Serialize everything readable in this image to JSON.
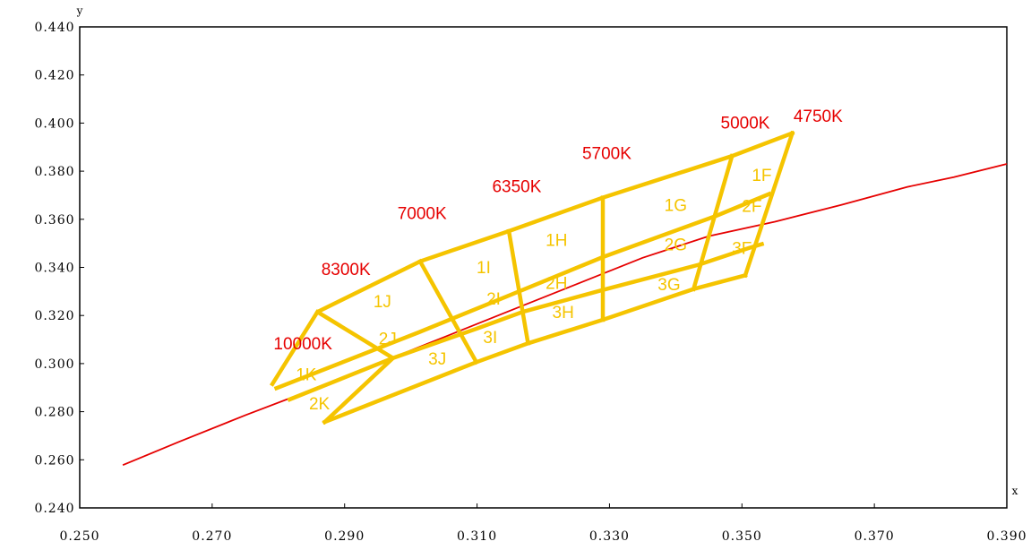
{
  "chart_data": {
    "type": "line",
    "title": "",
    "xlabel": "x",
    "ylabel": "y",
    "xlim": [
      0.25,
      0.39
    ],
    "ylim": [
      0.24,
      0.44
    ],
    "grid": false,
    "x_ticks": [
      "0.250",
      "0.270",
      "0.290",
      "0.310",
      "0.330",
      "0.350",
      "0.370",
      "0.390"
    ],
    "y_ticks": [
      "0.440",
      "0.420",
      "0.400",
      "0.380",
      "0.360",
      "0.340",
      "0.320",
      "0.300",
      "0.280",
      "0.260",
      "0.240"
    ],
    "colors": {
      "locus": "#e60000",
      "bins": "#f5c400",
      "cct_text": "#e60000",
      "bin_text": "#f5c400"
    },
    "series": [
      {
        "type": "line",
        "points": [
          [
            0.2565,
            0.2578
          ],
          [
            0.265,
            0.2675
          ],
          [
            0.275,
            0.2785
          ],
          [
            0.285,
            0.289
          ],
          [
            0.295,
            0.3
          ],
          [
            0.305,
            0.311
          ],
          [
            0.315,
            0.322
          ],
          [
            0.325,
            0.333
          ],
          [
            0.335,
            0.344
          ],
          [
            0.345,
            0.353
          ],
          [
            0.355,
            0.359
          ],
          [
            0.365,
            0.366
          ],
          [
            0.375,
            0.3735
          ],
          [
            0.382,
            0.3775
          ],
          [
            0.39,
            0.383
          ]
        ]
      }
    ],
    "bin_lines": [
      {
        "points": [
          [
            0.2791,
            0.2915
          ],
          [
            0.2859,
            0.3215
          ],
          [
            0.3014,
            0.3425
          ],
          [
            0.3148,
            0.3551
          ],
          [
            0.329,
            0.369
          ],
          [
            0.3485,
            0.3863
          ],
          [
            0.3576,
            0.3958
          ]
        ]
      },
      {
        "points": [
          [
            0.2817,
            0.2851
          ],
          [
            0.2973,
            0.3023
          ],
          [
            0.31,
            0.3146
          ],
          [
            0.317,
            0.3216
          ],
          [
            0.329,
            0.3306
          ],
          [
            0.3435,
            0.3411
          ],
          [
            0.351,
            0.348
          ],
          [
            0.353,
            0.3497
          ]
        ]
      },
      {
        "points": [
          [
            0.287,
            0.2757
          ],
          [
            0.3099,
            0.3006
          ],
          [
            0.3177,
            0.3084
          ],
          [
            0.329,
            0.3182
          ],
          [
            0.3427,
            0.331
          ],
          [
            0.3505,
            0.3367
          ]
        ]
      },
      {
        "points": [
          [
            0.2797,
            0.2898
          ],
          [
            0.3012,
            0.313
          ],
          [
            0.3142,
            0.3276
          ],
          [
            0.329,
            0.3443
          ],
          [
            0.3461,
            0.3614
          ],
          [
            0.3541,
            0.3705
          ]
        ]
      },
      {
        "points": [
          [
            0.3576,
            0.3958
          ],
          [
            0.3505,
            0.3367
          ]
        ]
      },
      {
        "points": [
          [
            0.3485,
            0.3863
          ],
          [
            0.3427,
            0.331
          ]
        ]
      },
      {
        "points": [
          [
            0.329,
            0.369
          ],
          [
            0.329,
            0.3182
          ]
        ]
      },
      {
        "points": [
          [
            0.3148,
            0.3551
          ],
          [
            0.3177,
            0.3084
          ]
        ]
      },
      {
        "points": [
          [
            0.3014,
            0.3425
          ],
          [
            0.3099,
            0.3006
          ]
        ]
      },
      {
        "points": [
          [
            0.2859,
            0.3215
          ],
          [
            0.2973,
            0.3023
          ],
          [
            0.287,
            0.2757
          ]
        ]
      }
    ],
    "cct_labels": [
      {
        "text": "10000K",
        "x": 0.2837,
        "y": 0.306
      },
      {
        "text": "8300K",
        "x": 0.2902,
        "y": 0.3369
      },
      {
        "text": "7000K",
        "x": 0.3017,
        "y": 0.3602
      },
      {
        "text": "6350K",
        "x": 0.316,
        "y": 0.3712
      },
      {
        "text": "5700K",
        "x": 0.3296,
        "y": 0.3851
      },
      {
        "text": "5000K",
        "x": 0.3505,
        "y": 0.3977
      },
      {
        "text": "4750K",
        "x": 0.3615,
        "y": 0.4005
      }
    ],
    "bin_labels": [
      {
        "text": "1F",
        "x": 0.353,
        "y": 0.376
      },
      {
        "text": "2F",
        "x": 0.3515,
        "y": 0.363
      },
      {
        "text": "3F",
        "x": 0.35,
        "y": 0.3455
      },
      {
        "text": "1G",
        "x": 0.34,
        "y": 0.3635
      },
      {
        "text": "2G",
        "x": 0.34,
        "y": 0.347
      },
      {
        "text": "3G",
        "x": 0.339,
        "y": 0.3305
      },
      {
        "text": "1H",
        "x": 0.322,
        "y": 0.349
      },
      {
        "text": "2H",
        "x": 0.322,
        "y": 0.331
      },
      {
        "text": "3H",
        "x": 0.323,
        "y": 0.319
      },
      {
        "text": "1I",
        "x": 0.311,
        "y": 0.3375
      },
      {
        "text": "2I",
        "x": 0.3125,
        "y": 0.3245
      },
      {
        "text": "3I",
        "x": 0.312,
        "y": 0.3085
      },
      {
        "text": "1J",
        "x": 0.2957,
        "y": 0.3235
      },
      {
        "text": "2J",
        "x": 0.2965,
        "y": 0.308
      },
      {
        "text": "3J",
        "x": 0.304,
        "y": 0.2995
      },
      {
        "text": "1K",
        "x": 0.2842,
        "y": 0.293
      },
      {
        "text": "2K",
        "x": 0.2862,
        "y": 0.281
      }
    ]
  }
}
